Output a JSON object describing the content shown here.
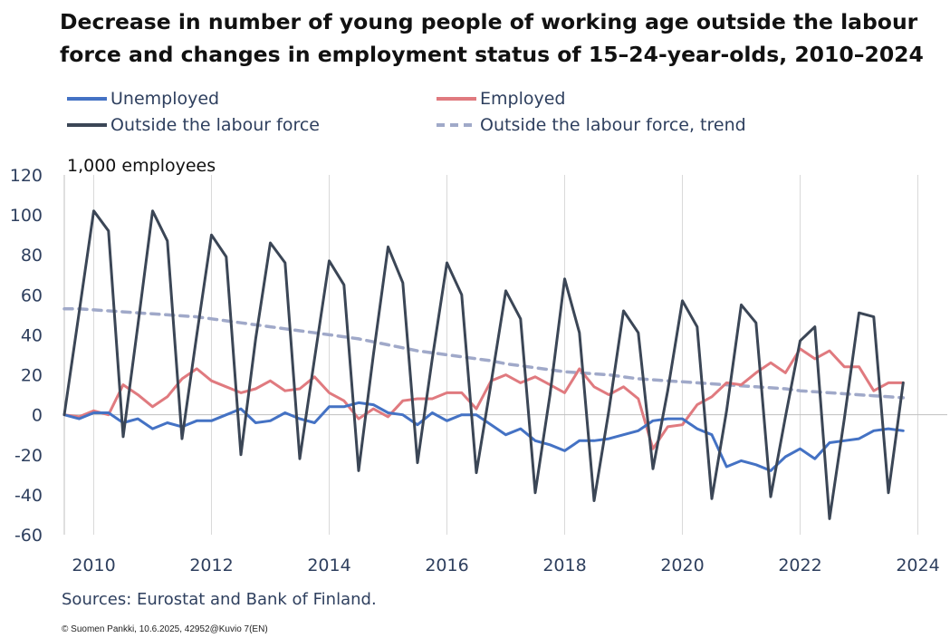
{
  "title_line1": "Decrease in number of young people of working age outside the labour",
  "title_line2": "force and changes in employment status of 15–24-year-olds, 2010–2024",
  "legend": [
    {
      "label": "Unemployed",
      "color": "#4472c4",
      "dash": false
    },
    {
      "label": "Employed",
      "color": "#e07a7f",
      "dash": false
    },
    {
      "label": "Outside the labour force",
      "color": "#3b4656",
      "dash": false
    },
    {
      "label": "Outside the labour force, trend",
      "color": "#a0a9c9",
      "dash": true
    }
  ],
  "sources": "Sources: Eurostat and Bank of Finland.",
  "copyright": "© Suomen Pankki, 10.6.2025,  42952@Kuvio  7(EN)",
  "chart_data": {
    "type": "line",
    "title": "Decrease in number of young people of working age outside the labour force and changes in employment status of 15–24-year-olds, 2010–2024",
    "ylabel": "1,000 employees",
    "xlabel": "",
    "ylim": [
      -60,
      120
    ],
    "yticks": [
      -60,
      -40,
      -20,
      0,
      20,
      40,
      60,
      80,
      100,
      120
    ],
    "xticks": [
      2010,
      2012,
      2014,
      2016,
      2018,
      2020,
      2022,
      2024
    ],
    "xlim": [
      2009.5,
      2024.5
    ],
    "grid": "vertical",
    "legend_position": "top",
    "x_start": 2009.5,
    "x_step": 0.25,
    "series": [
      {
        "name": "Unemployed",
        "color": "#4472c4",
        "dash": false,
        "values": [
          0,
          -2,
          1,
          1,
          -4,
          -2,
          -7,
          -4,
          -6,
          -3,
          -3,
          0,
          3,
          -4,
          -3,
          1,
          -2,
          -4,
          4,
          4,
          6,
          5,
          1,
          0,
          -5,
          1,
          -3,
          0,
          0,
          -5,
          -10,
          -7,
          -13,
          -15,
          -18,
          -13,
          -13,
          -12,
          -10,
          -8,
          -3,
          -2,
          -2,
          -7,
          -10,
          -26,
          -23,
          -25,
          -28,
          -21,
          -17,
          -22,
          -14,
          -13,
          -12,
          -8,
          -7,
          -8
        ]
      },
      {
        "name": "Employed",
        "color": "#e07a7f",
        "dash": false,
        "values": [
          0,
          -1,
          2,
          0,
          15,
          10,
          4,
          9,
          18,
          23,
          17,
          14,
          11,
          13,
          17,
          12,
          13,
          19,
          11,
          7,
          -2,
          3,
          -1,
          7,
          8,
          8,
          11,
          11,
          3,
          17,
          20,
          16,
          19,
          15,
          11,
          23,
          14,
          10,
          14,
          8,
          -17,
          -6,
          -5,
          5,
          9,
          16,
          15,
          21,
          26,
          21,
          33,
          28,
          32,
          24,
          24,
          12,
          16,
          16
        ]
      },
      {
        "name": "Outside the labour force",
        "color": "#3b4656",
        "dash": false,
        "values": [
          0,
          51,
          102,
          92,
          -11,
          45,
          102,
          87,
          -12,
          40,
          90,
          79,
          -20,
          38,
          86,
          76,
          -22,
          28,
          77,
          65,
          -28,
          30,
          84,
          66,
          -24,
          28,
          76,
          60,
          -29,
          16,
          62,
          48,
          -39,
          10,
          68,
          41,
          -43,
          2,
          52,
          41,
          -27,
          12,
          57,
          44,
          -42,
          2,
          55,
          46,
          -41,
          -1,
          37,
          44,
          -52,
          -2,
          51,
          49,
          -39,
          16
        ]
      },
      {
        "name": "Outside the labour force, trend",
        "color": "#a0a9c9",
        "dash": true,
        "values": [
          53,
          53,
          52.5,
          52,
          51.5,
          51,
          50.5,
          50,
          49.5,
          49,
          48,
          47,
          46,
          45,
          44,
          43,
          42,
          41,
          40,
          39,
          38,
          36.5,
          35,
          33.5,
          32,
          31,
          30,
          29,
          28,
          27,
          25.5,
          24.5,
          23.5,
          22.5,
          21.5,
          21,
          20.5,
          20,
          19,
          18,
          17.5,
          17,
          16.5,
          16,
          15.5,
          15,
          14.5,
          14,
          13.5,
          13,
          12,
          11.5,
          11,
          10.5,
          10,
          9.5,
          9,
          8.5
        ]
      }
    ]
  }
}
